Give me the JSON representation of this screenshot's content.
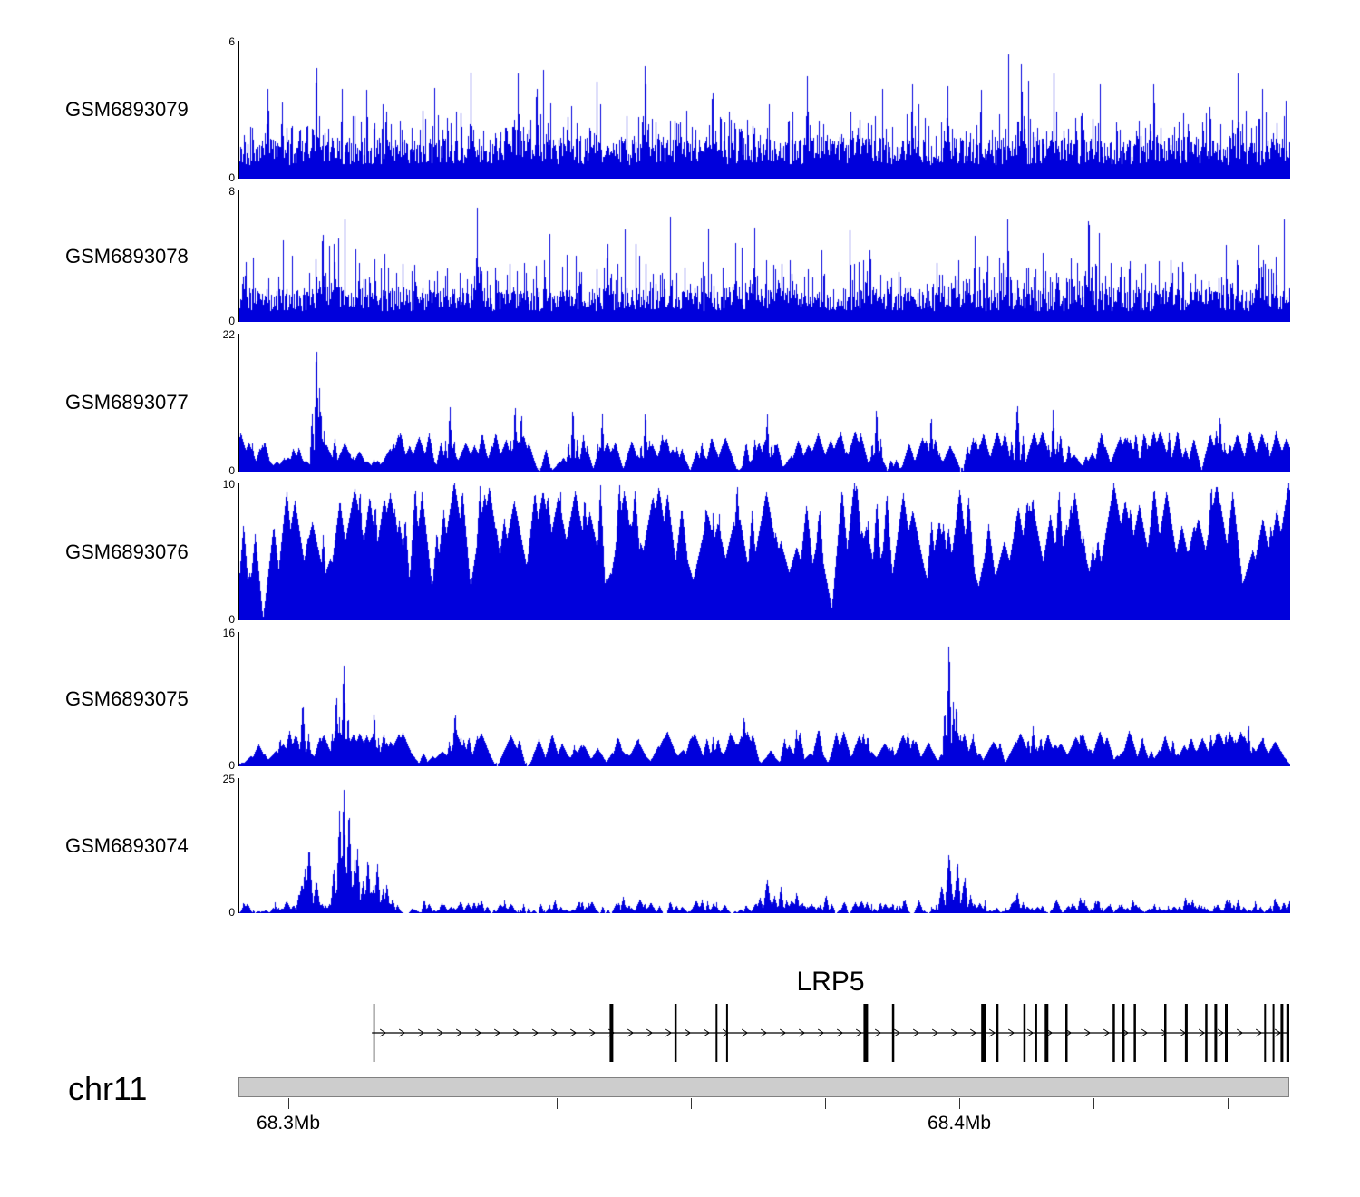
{
  "chart_data": {
    "type": "area",
    "title": "",
    "description": "Genome browser coverage tracks over the LRP5 locus on chr11 (68.3Mb - 68.4Mb)",
    "signal_color": "#0000dc",
    "legend_position": "none",
    "grid": false,
    "tracks": [
      {
        "label": "GSM6893079",
        "ymax": 6,
        "ymin": 0,
        "ymax_label": "6",
        "ymin_label": "0",
        "style": "dense",
        "seed": 101,
        "base": [
          0.1,
          0.3
        ],
        "p1": 0.3,
        "a1": 0.25,
        "p2": 0.05,
        "a2": 0.45,
        "features": [
          {
            "x": 0.073,
            "h": 1.0,
            "w": 2
          },
          {
            "x": 0.386,
            "h": 1.0,
            "w": 2
          },
          {
            "x": 0.744,
            "h": 0.97,
            "w": 2
          },
          {
            "x": 0.027,
            "h": 0.76,
            "w": 2
          },
          {
            "x": 0.22,
            "h": 0.78,
            "w": 2
          },
          {
            "x": 0.265,
            "h": 0.82,
            "w": 2
          },
          {
            "x": 0.45,
            "h": 0.8,
            "w": 2
          },
          {
            "x": 0.54,
            "h": 0.8,
            "w": 2
          },
          {
            "x": 0.64,
            "h": 0.78,
            "w": 2
          },
          {
            "x": 0.87,
            "h": 0.82,
            "w": 2
          },
          {
            "x": 0.95,
            "h": 0.78,
            "w": 2
          }
        ]
      },
      {
        "label": "GSM6893078",
        "ymax": 8,
        "ymin": 0,
        "ymax_label": "8",
        "ymin_label": "0",
        "style": "dense",
        "seed": 202,
        "base": [
          0.08,
          0.26
        ],
        "p1": 0.28,
        "a1": 0.28,
        "p2": 0.045,
        "a2": 0.5,
        "features": [
          {
            "x": 0.808,
            "h": 1.0,
            "w": 2
          },
          {
            "x": 0.226,
            "h": 0.9,
            "w": 2
          },
          {
            "x": 0.731,
            "h": 0.88,
            "w": 2
          },
          {
            "x": 0.079,
            "h": 0.85,
            "w": 2
          },
          {
            "x": 0.09,
            "h": 0.7,
            "w": 2
          },
          {
            "x": 0.35,
            "h": 0.72,
            "w": 2
          },
          {
            "x": 0.49,
            "h": 0.75,
            "w": 2
          },
          {
            "x": 0.6,
            "h": 0.68,
            "w": 2
          },
          {
            "x": 0.97,
            "h": 0.66,
            "w": 2
          }
        ]
      },
      {
        "label": "GSM6893077",
        "ymax": 22,
        "ymin": 0,
        "ymax_label": "22",
        "ymin_label": "0",
        "style": "peaks",
        "seed": 303,
        "count": 290,
        "w": [
          4,
          14
        ],
        "h": [
          0.07,
          0.3
        ],
        "pow": 1.2,
        "features": [
          {
            "x": 0.073,
            "h": 1.0,
            "w": 3
          },
          {
            "x": 0.076,
            "h": 0.62,
            "w": 3
          },
          {
            "x": 0.2,
            "h": 0.5,
            "w": 3
          },
          {
            "x": 0.262,
            "h": 0.52,
            "w": 3
          },
          {
            "x": 0.268,
            "h": 0.46,
            "w": 3
          },
          {
            "x": 0.317,
            "h": 0.5,
            "w": 3
          },
          {
            "x": 0.345,
            "h": 0.44,
            "w": 3
          },
          {
            "x": 0.386,
            "h": 0.47,
            "w": 3
          },
          {
            "x": 0.502,
            "h": 0.44,
            "w": 3
          },
          {
            "x": 0.606,
            "h": 0.5,
            "w": 3
          },
          {
            "x": 0.658,
            "h": 0.44,
            "w": 3
          },
          {
            "x": 0.74,
            "h": 0.52,
            "w": 4
          },
          {
            "x": 0.774,
            "h": 0.46,
            "w": 3
          },
          {
            "x": 0.933,
            "h": 0.44,
            "w": 3
          }
        ]
      },
      {
        "label": "GSM6893076",
        "ymax": 10,
        "ymin": 0,
        "ymax_label": "10",
        "ymin_label": "0",
        "style": "peaks",
        "seed": 404,
        "count": 230,
        "w": [
          6,
          26
        ],
        "h": [
          0.22,
          1.02
        ],
        "pow": 0.95,
        "features": []
      },
      {
        "label": "GSM6893075",
        "ymax": 16,
        "ymin": 0,
        "ymax_label": "16",
        "ymin_label": "0",
        "style": "peaks",
        "seed": 505,
        "count": 260,
        "w": [
          4,
          16
        ],
        "h": [
          0.07,
          0.27
        ],
        "pow": 1.1,
        "features": [
          {
            "x": 0.675,
            "h": 1.0,
            "w": 3
          },
          {
            "x": 0.099,
            "h": 0.82,
            "w": 3
          },
          {
            "x": 0.092,
            "h": 0.58,
            "w": 3
          },
          {
            "x": 0.06,
            "h": 0.5,
            "w": 4
          },
          {
            "x": 0.128,
            "h": 0.44,
            "w": 3
          },
          {
            "x": 0.205,
            "h": 0.42,
            "w": 4
          },
          {
            "x": 0.48,
            "h": 0.38,
            "w": 5
          },
          {
            "x": 0.682,
            "h": 0.5,
            "w": 3
          },
          {
            "x": 0.755,
            "h": 0.3,
            "w": 4
          },
          {
            "x": 0.96,
            "h": 0.34,
            "w": 3
          }
        ]
      },
      {
        "label": "GSM6893074",
        "ymax": 25,
        "ymin": 0,
        "ymax_label": "25",
        "ymin_label": "0",
        "style": "sparse",
        "seed": 606,
        "count": 520,
        "features": [
          {
            "x": 0.062,
            "h": 0.34,
            "w": 4
          },
          {
            "x": 0.066,
            "h": 0.5,
            "w": 5
          },
          {
            "x": 0.095,
            "h": 0.78,
            "w": 4
          },
          {
            "x": 0.099,
            "h": 1.0,
            "w": 3
          },
          {
            "x": 0.104,
            "h": 0.8,
            "w": 4
          },
          {
            "x": 0.112,
            "h": 0.5,
            "w": 4
          },
          {
            "x": 0.122,
            "h": 0.42,
            "w": 4
          },
          {
            "x": 0.131,
            "h": 0.38,
            "w": 4
          },
          {
            "x": 0.14,
            "h": 0.22,
            "w": 4
          },
          {
            "x": 0.23,
            "h": 0.1,
            "w": 4
          },
          {
            "x": 0.3,
            "h": 0.1,
            "w": 4
          },
          {
            "x": 0.365,
            "h": 0.12,
            "w": 4
          },
          {
            "x": 0.44,
            "h": 0.1,
            "w": 4
          },
          {
            "x": 0.502,
            "h": 0.26,
            "w": 5
          },
          {
            "x": 0.515,
            "h": 0.2,
            "w": 4
          },
          {
            "x": 0.53,
            "h": 0.16,
            "w": 4
          },
          {
            "x": 0.558,
            "h": 0.14,
            "w": 4
          },
          {
            "x": 0.675,
            "h": 0.46,
            "w": 5
          },
          {
            "x": 0.683,
            "h": 0.4,
            "w": 4
          },
          {
            "x": 0.69,
            "h": 0.28,
            "w": 4
          },
          {
            "x": 0.74,
            "h": 0.16,
            "w": 4
          },
          {
            "x": 0.8,
            "h": 0.12,
            "w": 4
          },
          {
            "x": 0.85,
            "h": 0.1,
            "w": 4
          },
          {
            "x": 0.9,
            "h": 0.12,
            "w": 4
          },
          {
            "x": 0.95,
            "h": 0.1,
            "w": 4
          },
          {
            "x": 0.985,
            "h": 0.12,
            "w": 3
          }
        ]
      }
    ],
    "gene": {
      "name": "LRP5",
      "strand": "+",
      "start": 0.127,
      "end": 1.0,
      "exons": [
        {
          "x": 0.129,
          "w": 1.5
        },
        {
          "x": 0.355,
          "w": 4
        },
        {
          "x": 0.416,
          "w": 2.5
        },
        {
          "x": 0.455,
          "w": 2
        },
        {
          "x": 0.465,
          "w": 2
        },
        {
          "x": 0.597,
          "w": 5
        },
        {
          "x": 0.623,
          "w": 2.5
        },
        {
          "x": 0.709,
          "w": 5
        },
        {
          "x": 0.722,
          "w": 3
        },
        {
          "x": 0.748,
          "w": 2.5
        },
        {
          "x": 0.759,
          "w": 2.5
        },
        {
          "x": 0.769,
          "w": 4
        },
        {
          "x": 0.788,
          "w": 2.5
        },
        {
          "x": 0.833,
          "w": 2.5
        },
        {
          "x": 0.842,
          "w": 3
        },
        {
          "x": 0.853,
          "w": 2.5
        },
        {
          "x": 0.882,
          "w": 2.5
        },
        {
          "x": 0.902,
          "w": 3
        },
        {
          "x": 0.921,
          "w": 2.5
        },
        {
          "x": 0.93,
          "w": 3
        },
        {
          "x": 0.94,
          "w": 3
        },
        {
          "x": 0.977,
          "w": 2
        },
        {
          "x": 0.985,
          "w": 2
        },
        {
          "x": 0.993,
          "w": 3
        },
        {
          "x": 0.999,
          "w": 4
        }
      ]
    },
    "region": {
      "chromosome_label": "chr11",
      "ticks": [
        0.0475,
        0.1752,
        0.3029,
        0.4306,
        0.5583,
        0.686,
        0.8137,
        0.9414
      ],
      "tick_labels": [
        {
          "index": 0,
          "text": "68.3Mb"
        },
        {
          "index": 5,
          "text": "68.4Mb"
        }
      ]
    }
  }
}
